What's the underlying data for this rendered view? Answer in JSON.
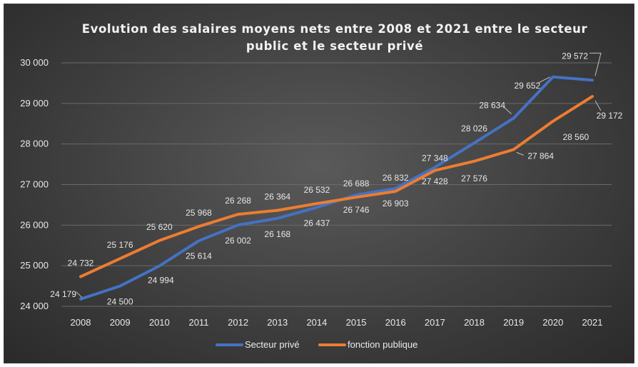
{
  "chart_data": {
    "type": "line",
    "title_lines": [
      "Evolution des salaires moyens nets entre 2008 et 2021 entre le secteur",
      "public et le secteur privé"
    ],
    "categories": [
      "2008",
      "2009",
      "2010",
      "2011",
      "2012",
      "2013",
      "2014",
      "2015",
      "2016",
      "2017",
      "2018",
      "2019",
      "2020",
      "2021"
    ],
    "ylim": [
      24000,
      30000
    ],
    "yticks": [
      24000,
      25000,
      26000,
      27000,
      28000,
      29000,
      30000
    ],
    "ytick_labels": [
      "24 000",
      "25 000",
      "26 000",
      "27 000",
      "28 000",
      "29 000",
      "30 000"
    ],
    "grid": "horizontal",
    "legend_position": "bottom",
    "series": [
      {
        "name": "Secteur privé",
        "color": "#4472C4",
        "values": [
          24179,
          24500,
          24994,
          25614,
          26002,
          26168,
          26437,
          26746,
          26903,
          27428,
          28026,
          28634,
          29652,
          29572
        ],
        "labels": [
          "24 179",
          "24 500",
          "24 994",
          "25 614",
          "26 002",
          "26 168",
          "26 437",
          "26 746",
          "26 903",
          "27 428",
          "28 026",
          "28 634",
          "29 652",
          "29 572"
        ]
      },
      {
        "name": "fonction publique",
        "color": "#ED7D31",
        "values": [
          24732,
          25176,
          25620,
          25968,
          26268,
          26364,
          26532,
          26688,
          26832,
          27348,
          27576,
          27864,
          28560,
          29172
        ],
        "labels": [
          "24 732",
          "25 176",
          "25 620",
          "25 968",
          "26 268",
          "26 364",
          "26 532",
          "26 688",
          "26 832",
          "27 348",
          "27 576",
          "27 864",
          "28 560",
          "29 172"
        ]
      }
    ]
  }
}
